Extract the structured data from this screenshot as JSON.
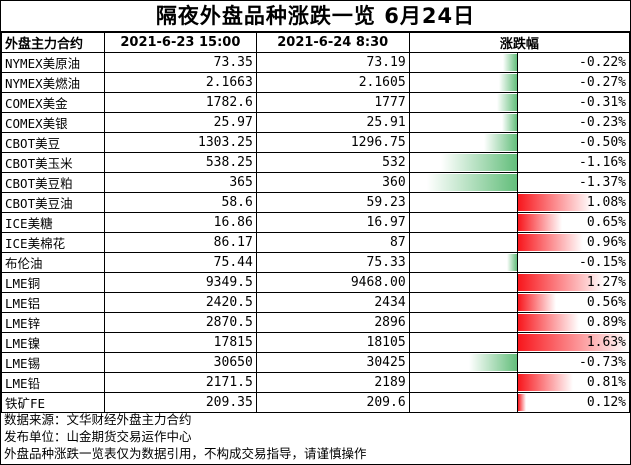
{
  "title": "隔夜外盘品种涨跌一览 6月24日",
  "headers": {
    "name": "外盘主力合约",
    "prev": "2021-6-23 15:00",
    "curr": "2021-6-24 8:30",
    "change": "涨跌幅"
  },
  "rows": [
    {
      "name": "NYMEX美原油",
      "prev": "73.35",
      "curr": "73.19",
      "change": "-0.22%",
      "value": -0.22
    },
    {
      "name": "NYMEX美燃油",
      "prev": "2.1663",
      "curr": "2.1605",
      "change": "-0.27%",
      "value": -0.27
    },
    {
      "name": "COMEX美金",
      "prev": "1782.6",
      "curr": "1777",
      "change": "-0.31%",
      "value": -0.31
    },
    {
      "name": "COMEX美银",
      "prev": "25.97",
      "curr": "25.91",
      "change": "-0.23%",
      "value": -0.23
    },
    {
      "name": "CBOT美豆",
      "prev": "1303.25",
      "curr": "1296.75",
      "change": "-0.50%",
      "value": -0.5
    },
    {
      "name": "CBOT美玉米",
      "prev": "538.25",
      "curr": "532",
      "change": "-1.16%",
      "value": -1.16
    },
    {
      "name": "CBOT美豆粕",
      "prev": "365",
      "curr": "360",
      "change": "-1.37%",
      "value": -1.37
    },
    {
      "name": "CBOT美豆油",
      "prev": "58.6",
      "curr": "59.23",
      "change": "1.08%",
      "value": 1.08
    },
    {
      "name": "ICE美糖",
      "prev": "16.86",
      "curr": "16.97",
      "change": "0.65%",
      "value": 0.65
    },
    {
      "name": "ICE美棉花",
      "prev": "86.17",
      "curr": "87",
      "change": "0.96%",
      "value": 0.96
    },
    {
      "name": "布伦油",
      "prev": "75.44",
      "curr": "75.33",
      "change": "-0.15%",
      "value": -0.15
    },
    {
      "name": "LME铜",
      "prev": "9349.5",
      "curr": "9468.00",
      "change": "1.27%",
      "value": 1.27
    },
    {
      "name": "LME铝",
      "prev": "2420.5",
      "curr": "2434",
      "change": "0.56%",
      "value": 0.56
    },
    {
      "name": "LME锌",
      "prev": "2870.5",
      "curr": "2896",
      "change": "0.89%",
      "value": 0.89
    },
    {
      "name": "LME镍",
      "prev": "17815",
      "curr": "18105",
      "change": "1.63%",
      "value": 1.63
    },
    {
      "name": "LME锡",
      "prev": "30650",
      "curr": "30425",
      "change": "-0.73%",
      "value": -0.73
    },
    {
      "name": "LME铅",
      "prev": "2171.5",
      "curr": "2189",
      "change": "0.81%",
      "value": 0.81
    },
    {
      "name": "铁矿FE",
      "prev": "209.35",
      "curr": "209.6",
      "change": "0.12%",
      "value": 0.12
    }
  ],
  "footer": [
    "数据来源：文华财经外盘主力合约",
    "发布单位：山金期货交易运作中心",
    "外盘品种涨跌一览表仅为数据引用，不构成交易指导，请谨慎操作"
  ],
  "colors": {
    "negative": "#63be7b",
    "positive": "#f8161c"
  }
}
